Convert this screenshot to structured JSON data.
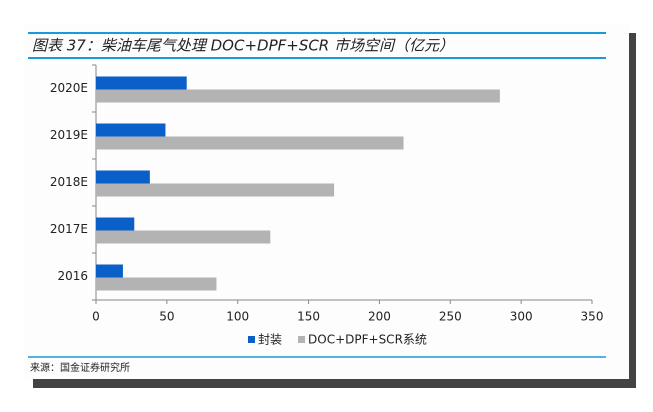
{
  "chart_data": {
    "type": "bar",
    "orientation": "horizontal",
    "title": "图表 37：柴油车尾气处理 DOC+DPF+SCR 市场空间（亿元）",
    "source": "来源：国金证券研究所",
    "categories": [
      "2016",
      "2017E",
      "2018E",
      "2019E",
      "2020E"
    ],
    "series": [
      {
        "name": "封装",
        "color": "#0a5fc8",
        "values": [
          19,
          27,
          38,
          49,
          64
        ]
      },
      {
        "name": "DOC+DPF+SCR系统",
        "color": "#b3b3b3",
        "values": [
          85,
          123,
          168,
          217,
          285
        ]
      }
    ],
    "xlim": [
      0,
      350
    ],
    "xticks": [
      0,
      50,
      100,
      150,
      200,
      250,
      300,
      350
    ],
    "legend": "bottom"
  }
}
